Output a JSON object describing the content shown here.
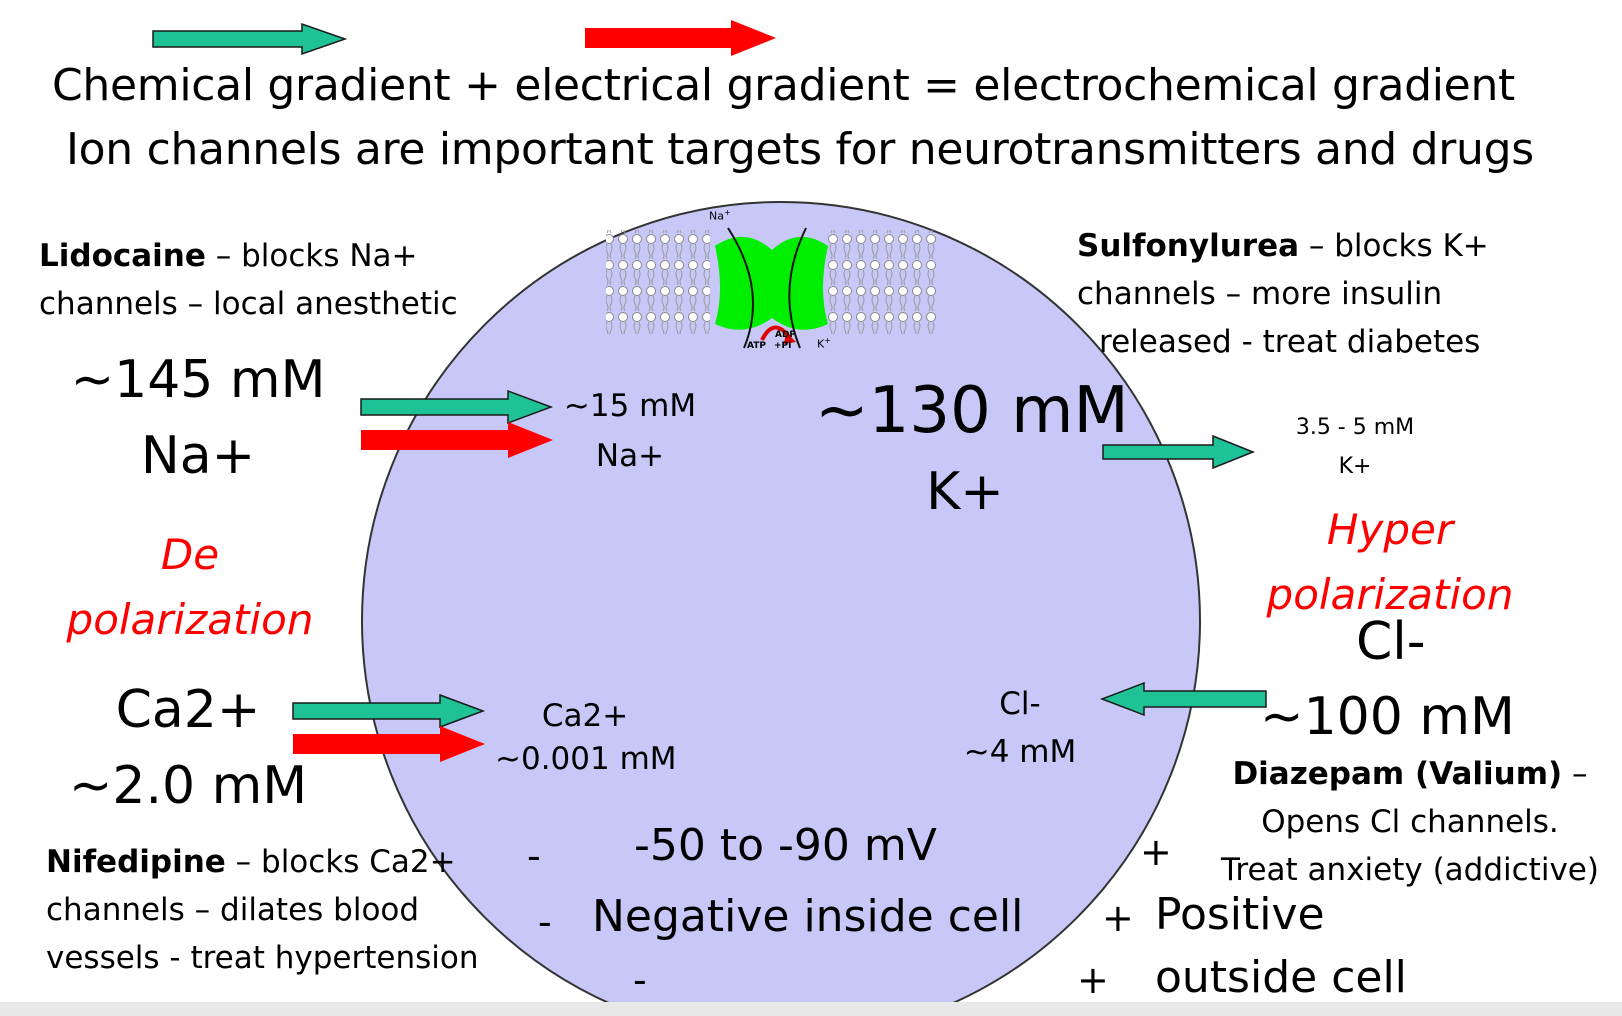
{
  "legend": {
    "chemical_color": "#1fc196",
    "electrical_color": "#ff0000"
  },
  "headline": {
    "line1": "Chemical gradient + electrical gradient = electrochemical gradient",
    "line2": "Ion channels are important targets for neurotransmitters and drugs"
  },
  "cell": {
    "fill": "#c8c8f8"
  },
  "lidocaine": {
    "name": "Lidocaine",
    "rest1": " – blocks Na+",
    "line2": "channels – local anesthetic"
  },
  "sulfonylurea": {
    "name": "Sulfonylurea",
    "rest1": " – blocks K+",
    "line2": "channels – more insulin",
    "line3": "released - treat diabetes"
  },
  "nifedipine": {
    "name": "Nifedipine",
    "rest1": " – blocks Ca2+",
    "line2": "channels – dilates blood",
    "line3": "vessels - treat hypertension"
  },
  "diazepam": {
    "name": "Diazepam (Valium)",
    "rest1": " –",
    "line2": "Opens Cl channels.",
    "line3": "Treat anxiety (addictive)"
  },
  "na_out": {
    "conc": "~145 mM",
    "ion": "Na+"
  },
  "na_in": {
    "conc": "~15 mM",
    "ion": "Na+"
  },
  "k_in": {
    "conc": "~130 mM",
    "ion": "K+"
  },
  "k_out": {
    "conc": "3.5 - 5 mM",
    "ion": "K+"
  },
  "ca_out": {
    "ion": "Ca2+",
    "conc": "~2.0 mM"
  },
  "ca_in": {
    "ion": "Ca2+",
    "conc": "~0.001 mM"
  },
  "cl_in": {
    "ion": "Cl-",
    "conc": "~4 mM"
  },
  "cl_out": {
    "ion": "Cl-",
    "conc": "~100 mM"
  },
  "depolarization": {
    "line1": "De",
    "line2": "polarization"
  },
  "hyperpolarization": {
    "line1": "Hyper",
    "line2": "polarization"
  },
  "membrane": {
    "potential": "-50 to -90 mV",
    "inside": "Negative inside cell",
    "minus": "-",
    "plus": "+",
    "positive": "Positive",
    "outside": "outside cell"
  },
  "channel_figure": {
    "na": "Na",
    "sup": "+",
    "k": "K",
    "adp": "ADP",
    "atp": "ATP",
    "pi": "+PI"
  }
}
